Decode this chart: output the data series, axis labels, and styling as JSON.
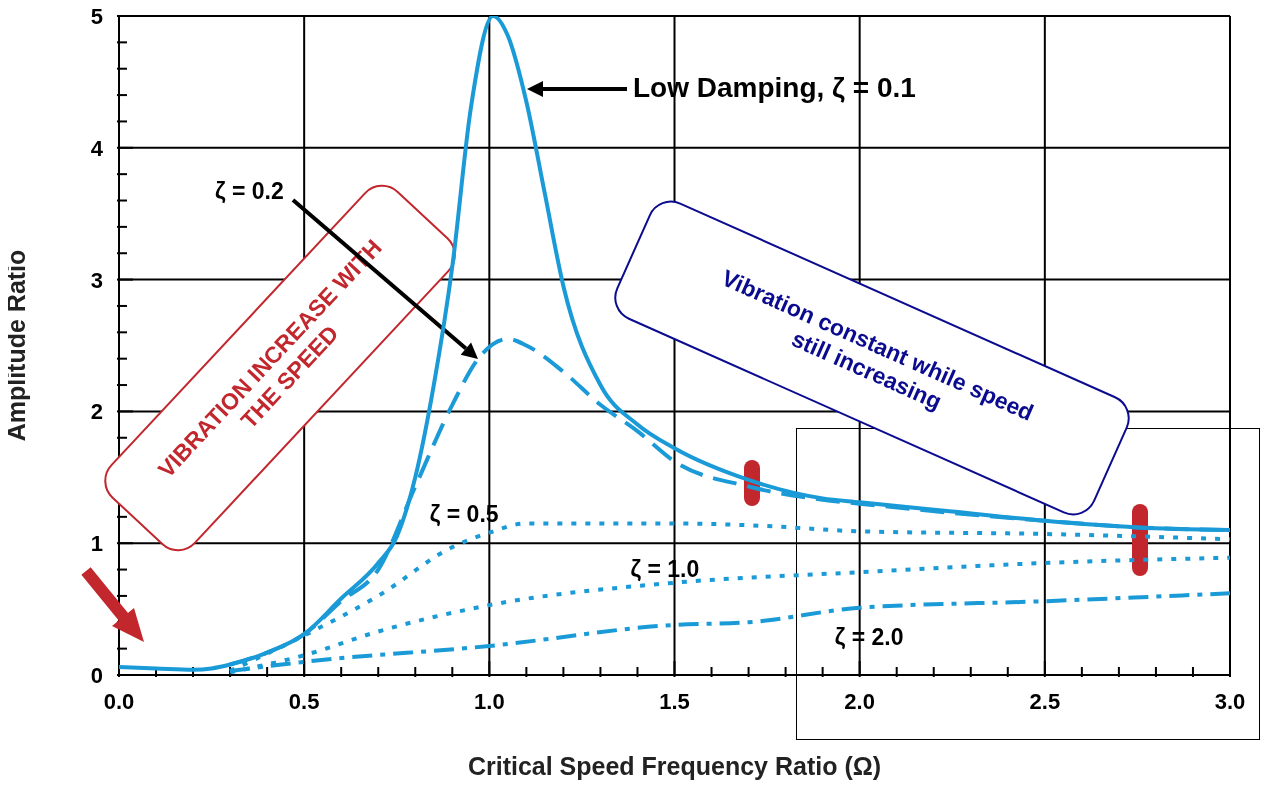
{
  "chart_data": {
    "type": "line",
    "xlabel": "Critical Speed Frequency Ratio (Ω)",
    "ylabel": "Amplitude Ratio",
    "xlim": [
      0,
      3
    ],
    "ylim": [
      0,
      5
    ],
    "xticks": [
      {
        "value": 0,
        "label": "0.0"
      },
      {
        "value": 0.1,
        "label": null
      },
      {
        "value": 0.2,
        "label": null
      },
      {
        "value": 0.3,
        "label": null
      },
      {
        "value": 0.4,
        "label": null
      },
      {
        "value": 0.5,
        "label": "0.5"
      },
      {
        "value": 0.6,
        "label": null
      },
      {
        "value": 0.7,
        "label": null
      },
      {
        "value": 0.8,
        "label": null
      },
      {
        "value": 0.9,
        "label": null
      },
      {
        "value": 1,
        "label": "1.0"
      },
      {
        "value": 1.1,
        "label": null
      },
      {
        "value": 1.2,
        "label": null
      },
      {
        "value": 1.3,
        "label": null
      },
      {
        "value": 1.4,
        "label": null
      },
      {
        "value": 1.5,
        "label": "1.5"
      },
      {
        "value": 1.6,
        "label": null
      },
      {
        "value": 1.7,
        "label": null
      },
      {
        "value": 1.8,
        "label": null
      },
      {
        "value": 1.9,
        "label": null
      },
      {
        "value": 2,
        "label": "2.0"
      },
      {
        "value": 2.1,
        "label": null
      },
      {
        "value": 2.2,
        "label": null
      },
      {
        "value": 2.3,
        "label": null
      },
      {
        "value": 2.4,
        "label": null
      },
      {
        "value": 2.5,
        "label": "2.5"
      },
      {
        "value": 2.6,
        "label": null
      },
      {
        "value": 2.7,
        "label": null
      },
      {
        "value": 2.8,
        "label": null
      },
      {
        "value": 2.9,
        "label": null
      },
      {
        "value": 3,
        "label": "3.0"
      }
    ],
    "yticks": [
      0,
      {
        "value": 0.2,
        "label": null
      },
      {
        "value": 0.4,
        "label": null
      },
      {
        "value": 0.6,
        "label": null
      },
      {
        "value": 0.8,
        "label": null
      },
      1,
      {
        "value": 1.2,
        "label": null
      },
      {
        "value": 1.4,
        "label": null
      },
      {
        "value": 1.6,
        "label": null
      },
      {
        "value": 1.8,
        "label": null
      },
      2,
      {
        "value": 2.2,
        "label": null
      },
      {
        "value": 2.4,
        "label": null
      },
      {
        "value": 2.6,
        "label": null
      },
      {
        "value": 2.8,
        "label": null
      },
      3,
      {
        "value": 3.2,
        "label": null
      },
      {
        "value": 3.4,
        "label": null
      },
      {
        "value": 3.6,
        "label": null
      },
      {
        "value": 3.8,
        "label": null
      },
      4,
      {
        "value": 4.2,
        "label": null
      },
      {
        "value": 4.4,
        "label": null
      },
      {
        "value": 4.6,
        "label": null
      },
      {
        "value": 4.8,
        "label": null
      },
      5
    ],
    "grid": true,
    "marker": "none",
    "series": [
      {
        "color": "#1a9ad6",
        "line_style": "solid",
        "x": [
          0,
          0.1,
          0.2,
          0.25,
          0.3,
          0.4,
          0.5,
          0.6,
          0.7,
          0.75,
          0.8,
          0.85,
          0.9,
          0.95,
          1.01,
          1.05,
          1.1,
          1.15,
          1.2,
          1.3,
          1.4,
          1.5,
          1.7,
          1.9,
          2,
          2.25,
          2.5,
          2.75,
          3
        ],
        "values": [
          0.06,
          0.05,
          0.04,
          0.05,
          0.08,
          0.17,
          0.31,
          0.58,
          0.85,
          1.05,
          1.5,
          2.2,
          3.1,
          4.3,
          5,
          4.85,
          4.35,
          3.65,
          2.95,
          2.2,
          1.9,
          1.72,
          1.48,
          1.34,
          1.31,
          1.24,
          1.17,
          1.12,
          1.1
        ]
      },
      {
        "color": "#1a9ad6",
        "line_style": "dashed",
        "x": [
          0.3,
          0.4,
          0.5,
          0.6,
          0.7,
          0.8,
          0.9,
          0.97,
          1.05,
          1.1,
          1.2,
          1.3,
          1.4,
          1.5,
          1.7,
          1.9,
          2,
          2.25,
          2.5,
          2.75,
          3
        ],
        "values": [
          0.08,
          0.17,
          0.31,
          0.56,
          0.8,
          1.43,
          2.05,
          2.4,
          2.55,
          2.5,
          2.3,
          2.05,
          1.85,
          1.62,
          1.43,
          1.33,
          1.3,
          1.23,
          1.17,
          1.12,
          1.1
        ]
      },
      {
        "color": "#1a9ad6",
        "line_style": "dotted",
        "x": [
          0.3,
          0.5,
          0.7,
          0.9,
          1,
          1.1,
          1.5,
          1.75,
          2,
          2.5,
          3
        ],
        "values": [
          0.03,
          0.3,
          0.6,
          0.97,
          1.08,
          1.15,
          1.15,
          1.13,
          1.09,
          1.07,
          1.03
        ]
      },
      {
        "color": "#1a9ad6",
        "line_style": "dotted",
        "x": [
          0.3,
          0.5,
          0.7,
          1,
          1.5,
          2,
          2.5,
          3
        ],
        "values": [
          0.02,
          0.15,
          0.33,
          0.53,
          0.7,
          0.78,
          0.85,
          0.89
        ]
      },
      {
        "color": "#1a9ad6",
        "line_style": "dashdot",
        "x": [
          0.3,
          0.5,
          1,
          1.5,
          1.7,
          2,
          2.5,
          3
        ],
        "values": [
          0.03,
          0.1,
          0.22,
          0.38,
          0.4,
          0.51,
          0.56,
          0.62
        ]
      }
    ],
    "annotations": [
      "VIBRATION INCREASE WITH THE SPEED",
      "Vibration constant while speed still increasing",
      "Low Damping, ζ = 0.1",
      "ζ = 0.2",
      {
        "text": "ζ = 0.5",
        "x": 0.95,
        "y": 1
      },
      {
        "text": "ζ = 1.0",
        "x": 1.5,
        "y": 0.7
      },
      {
        "text": "ζ = 2.0",
        "x": 2,
        "y": 0.5
      }
    ]
  }
}
